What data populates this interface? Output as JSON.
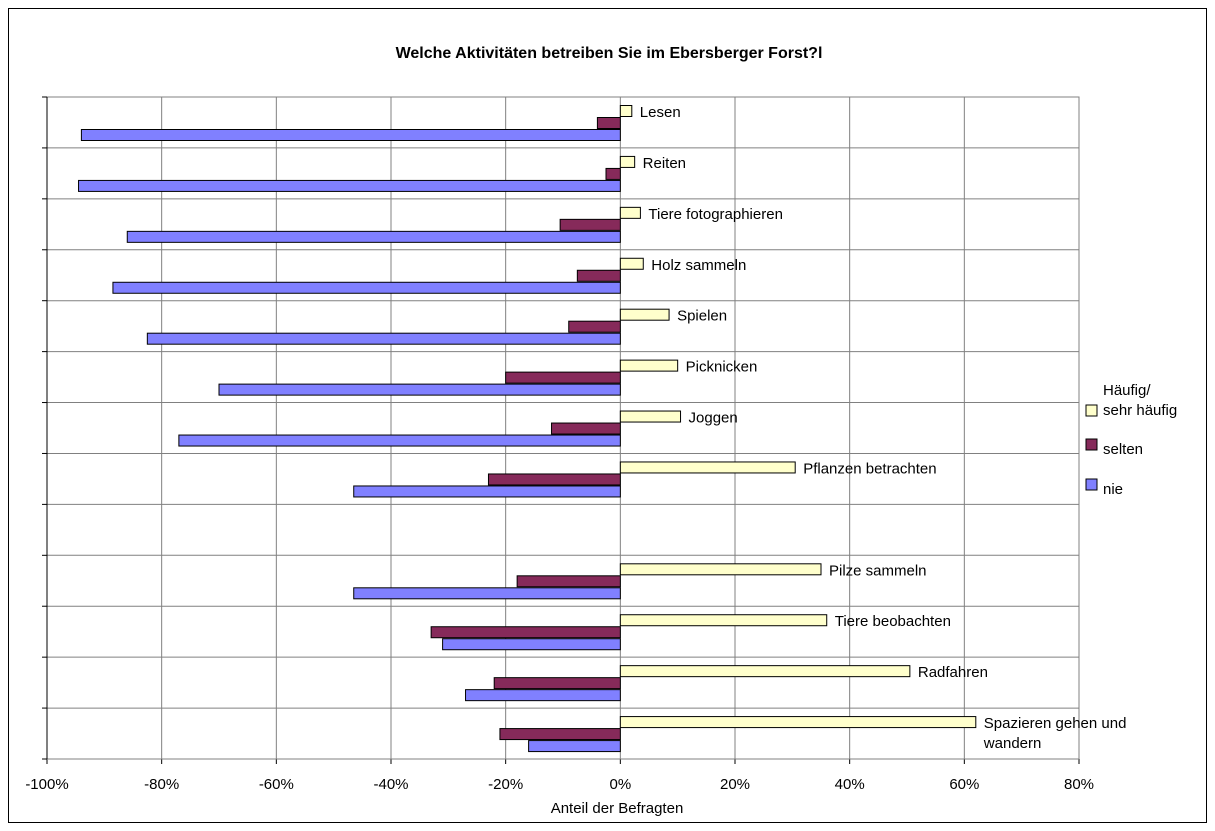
{
  "chart_data": {
    "type": "bar",
    "orientation": "horizontal",
    "title": "Welche Aktivitäten betreiben Sie im Ebersberger Forst?l",
    "xlabel": "Anteil der Befragten",
    "ylabel": "",
    "xlim": [
      -100,
      80
    ],
    "x_ticks": [
      "-100%",
      "-80%",
      "-60%",
      "-40%",
      "-20%",
      "0%",
      "20%",
      "40%",
      "60%",
      "80%"
    ],
    "grid": true,
    "legend_position": "right",
    "categories": [
      "Lesen",
      "Reiten",
      "Tiere fotographieren",
      "Holz sammeln",
      "Spielen",
      "Picknicken",
      "Joggen",
      "Pflanzen betrachten",
      "",
      "Pilze sammeln",
      "Tiere beobachten",
      "Radfahren",
      "Spazieren gehen und wandern"
    ],
    "series": [
      {
        "name": "Häufig/ sehr häufig",
        "color": "#ffffcc",
        "values": [
          2,
          2.5,
          3.5,
          4,
          8.5,
          10,
          10.5,
          30.5,
          null,
          35,
          36,
          50.5,
          62
        ]
      },
      {
        "name": "selten",
        "color": "#862a5a",
        "values": [
          -4,
          -2.5,
          -10.5,
          -7.5,
          -9,
          -20,
          -12,
          -23,
          null,
          -18,
          -33,
          -22,
          -21
        ]
      },
      {
        "name": "nie",
        "color": "#8080ff",
        "values": [
          -94,
          -94.5,
          -86,
          -88.5,
          -82.5,
          -70,
          -77,
          -46.5,
          null,
          -46.5,
          -31,
          -27,
          -16
        ]
      }
    ]
  }
}
